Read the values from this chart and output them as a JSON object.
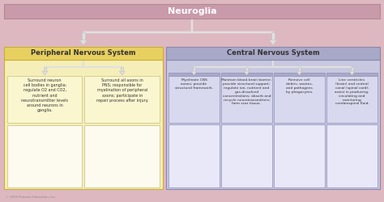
{
  "title": "Neuroglia",
  "bg_color": "#deb8c0",
  "outer_bg": "#e8c8cc",
  "title_bar_color": "#c89aaa",
  "pns_header": "Peripheral Nervous System",
  "cns_header": "Central Nervous System",
  "pns_header_color": "#e8d060",
  "cns_header_color": "#a8a8c8",
  "pns_section_color": "#f5eeb8",
  "cns_section_color": "#c8c8e0",
  "pns_cell_color": "#faf6d0",
  "cns_cell_color": "#d8d8ee",
  "pns_img_color": "#faf6d0",
  "cns_img_color": "#d8d8ee",
  "pns_cells": [
    "Surround neuron\ncell bodies in ganglia;\nregulate O2 and CO2,\nnutrient and\nneurotransmitter levels\naround neurons in\nganglia.",
    "Surround all axons in\nPNS; responsible for\nmyelination of peripheral\naxons; participate in\nrepair process after injury."
  ],
  "cns_cells": [
    "Myelinate CNS\naxons; provide\nstructural framework.",
    "Maintain blood-brain barrier;\nprovide structural support;\nregulate ion, nutrient and\ngas-dissolved\nconcentrations; absorb and\nrecycle neurotransmitters;\nform scar tissue.",
    "Remove cell\ndebris, wastes,\nand pathogens\nby phagocytes.",
    "Line ventricles\n(brain) and central\ncanal (spinal cord);\nassist in producing,\ncirculating and\nmonitoring\ncerebrospinal fluid."
  ],
  "copyright": "© 2015 Pearson Education, Inc.",
  "arrow_color": "#e0e0e0",
  "arrow_edge": "#c0c0c0",
  "text_color": "#333333",
  "header_text_color": "#333333",
  "white_gap_color": "#f0e8ea"
}
